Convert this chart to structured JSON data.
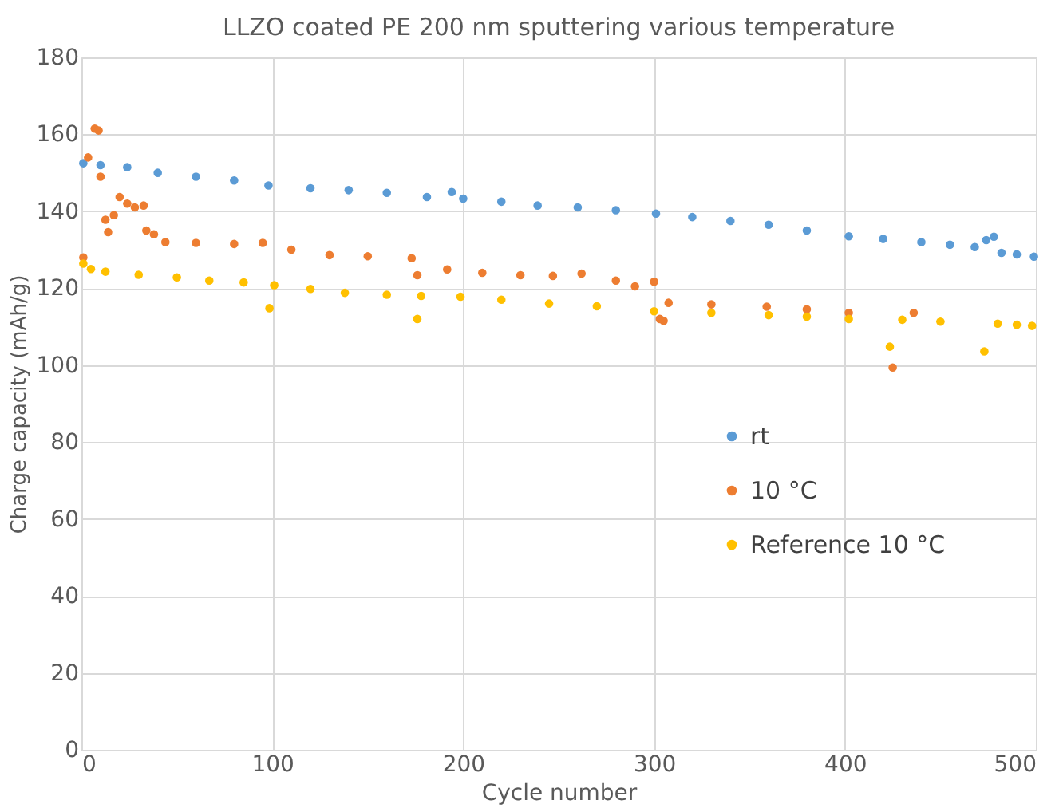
{
  "chart_data": {
    "type": "scatter",
    "title": "LLZO coated PE 200 nm sputtering various temperature",
    "xlabel": "Cycle number",
    "ylabel": "Charge capacity (mAh/g)",
    "xlim": [
      0,
      500
    ],
    "xticks": [
      0,
      100,
      200,
      300,
      400,
      500
    ],
    "ylim": [
      0,
      180
    ],
    "yticks": [
      0,
      20,
      40,
      60,
      80,
      100,
      120,
      140,
      160,
      180
    ],
    "grid": true,
    "legend": "right",
    "marker": "circle",
    "series": [
      {
        "name": "rt",
        "color": "#5b9bd5",
        "x": [
          1,
          10,
          24,
          40,
          60,
          80,
          98,
          120,
          140,
          160,
          181,
          194,
          200,
          220,
          239,
          260,
          280,
          301,
          320,
          340,
          360,
          380,
          402,
          420,
          440,
          455,
          468,
          474,
          478,
          482,
          490,
          499
        ],
        "values": [
          152.5,
          152,
          151.5,
          150,
          149,
          148,
          146.7,
          146,
          145.5,
          144.8,
          143.7,
          145,
          143.3,
          142.5,
          141.5,
          141,
          140.3,
          139.4,
          138.5,
          137.5,
          136.5,
          135,
          133.5,
          132.8,
          132,
          131.3,
          130.7,
          132.5,
          133.4,
          129.2,
          128.8,
          128.2
        ]
      },
      {
        "name": "10 °C",
        "color": "#ed7d31",
        "x": [
          1,
          3.5,
          7,
          9,
          10,
          12.6,
          14,
          17,
          20,
          24,
          28,
          32.6,
          34,
          38,
          44,
          60,
          80,
          95,
          110,
          130,
          150,
          173,
          176,
          191.6,
          210,
          230,
          247,
          262,
          280,
          290,
          300,
          303,
          305,
          307.6,
          330,
          359,
          380,
          402,
          425,
          436
        ],
        "values": [
          128,
          154,
          161.5,
          161,
          149,
          137.8,
          134.6,
          139,
          143.7,
          142,
          141,
          141.5,
          135,
          134,
          132,
          131.8,
          131.5,
          131.8,
          130,
          128.6,
          128.3,
          127.8,
          123.4,
          124.9,
          124,
          123.4,
          123.2,
          123.8,
          122,
          120.5,
          121.7,
          112,
          111.5,
          116.2,
          115.8,
          115.2,
          114.5,
          113.6,
          99.4,
          113.6
        ]
      },
      {
        "name": "Reference 10 °C",
        "color": "#ffc000",
        "x": [
          1,
          5,
          12.6,
          30,
          50,
          67,
          85,
          98.5,
          101,
          120,
          138,
          160,
          176,
          178,
          198.6,
          220,
          245,
          270,
          300,
          330,
          360,
          380,
          402,
          423.5,
          430,
          450,
          473,
          480,
          490,
          498
        ],
        "values": [
          126.4,
          125,
          124.3,
          123.5,
          122.8,
          122,
          121.5,
          114.8,
          120.8,
          119.8,
          118.8,
          118.3,
          112,
          118,
          117.8,
          117,
          116,
          115.3,
          114,
          113.6,
          113,
          112.6,
          112,
          104.8,
          111.8,
          111.3,
          103.6,
          110.8,
          110.5,
          110.2
        ]
      }
    ]
  }
}
